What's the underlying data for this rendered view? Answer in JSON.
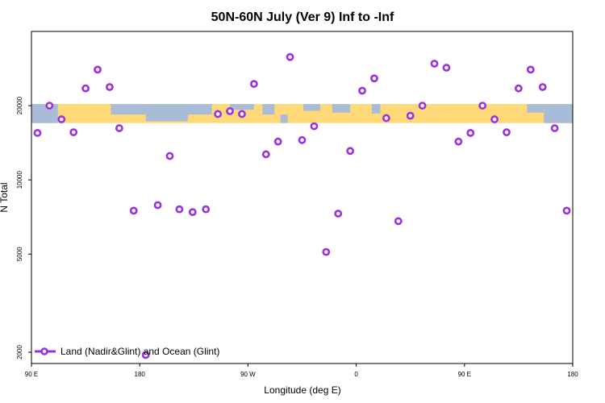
{
  "chart_data": {
    "type": "scatter",
    "title": "50N-60N July (Ver 9)   Inf to -Inf",
    "xlabel": "Longitude (deg E)",
    "ylabel": "N Total",
    "xlim": [
      -90,
      360
    ],
    "ylim": [
      1800,
      40000
    ],
    "yscale": "log",
    "x_ticks": [
      {
        "value": -90,
        "label": "90 E"
      },
      {
        "value": 0,
        "label": "180"
      },
      {
        "value": 90,
        "label": "90 W"
      },
      {
        "value": 180,
        "label": "0"
      },
      {
        "value": 270,
        "label": "90 E"
      },
      {
        "value": 360,
        "label": "180"
      }
    ],
    "y_ticks": [
      {
        "value": 2000,
        "label": "2000"
      },
      {
        "value": 5000,
        "label": "5000"
      },
      {
        "value": 10000,
        "label": "10000"
      },
      {
        "value": 20000,
        "label": "20000"
      }
    ],
    "map_band": {
      "lat_range": "50N-60N",
      "y_range": [
        17000,
        20300
      ],
      "ocean_color": "#a8bcd8",
      "land_color": "#ffd878"
    },
    "series": [
      {
        "name": "Land (Nadir&Glint) and Ocean (Glint)",
        "color": "#9b30e0",
        "points": [
          {
            "x": -85,
            "y": 15500
          },
          {
            "x": -75,
            "y": 20000
          },
          {
            "x": -65,
            "y": 17600
          },
          {
            "x": -55,
            "y": 15600
          },
          {
            "x": -45,
            "y": 23500
          },
          {
            "x": -35,
            "y": 28000
          },
          {
            "x": -25,
            "y": 23800
          },
          {
            "x": -17,
            "y": 16200
          },
          {
            "x": -5,
            "y": 7500
          },
          {
            "x": 5,
            "y": 1950
          },
          {
            "x": 15,
            "y": 7900
          },
          {
            "x": 25,
            "y": 12500
          },
          {
            "x": 33,
            "y": 7600
          },
          {
            "x": 44,
            "y": 7400
          },
          {
            "x": 55,
            "y": 7600
          },
          {
            "x": 65,
            "y": 18500
          },
          {
            "x": 75,
            "y": 19000
          },
          {
            "x": 85,
            "y": 18500
          },
          {
            "x": 95,
            "y": 24500
          },
          {
            "x": 105,
            "y": 12700
          },
          {
            "x": 115,
            "y": 14300
          },
          {
            "x": 125,
            "y": 31500
          },
          {
            "x": 135,
            "y": 14500
          },
          {
            "x": 145,
            "y": 16500
          },
          {
            "x": 155,
            "y": 5100
          },
          {
            "x": 165,
            "y": 7300
          },
          {
            "x": 175,
            "y": 13100
          },
          {
            "x": 185,
            "y": 23000
          },
          {
            "x": 195,
            "y": 25800
          },
          {
            "x": 205,
            "y": 17800
          },
          {
            "x": 215,
            "y": 6800
          },
          {
            "x": 225,
            "y": 18200
          },
          {
            "x": 235,
            "y": 20000
          },
          {
            "x": 245,
            "y": 29600
          },
          {
            "x": 255,
            "y": 28500
          },
          {
            "x": 265,
            "y": 14300
          },
          {
            "x": 275,
            "y": 15500
          },
          {
            "x": 285,
            "y": 20000
          },
          {
            "x": 295,
            "y": 17600
          },
          {
            "x": 305,
            "y": 15600
          },
          {
            "x": 315,
            "y": 23500
          },
          {
            "x": 325,
            "y": 28000
          },
          {
            "x": 335,
            "y": 23800
          },
          {
            "x": 345,
            "y": 16200
          },
          {
            "x": 355,
            "y": 7500
          }
        ]
      }
    ],
    "legend": {
      "position": "bottom-left"
    }
  }
}
